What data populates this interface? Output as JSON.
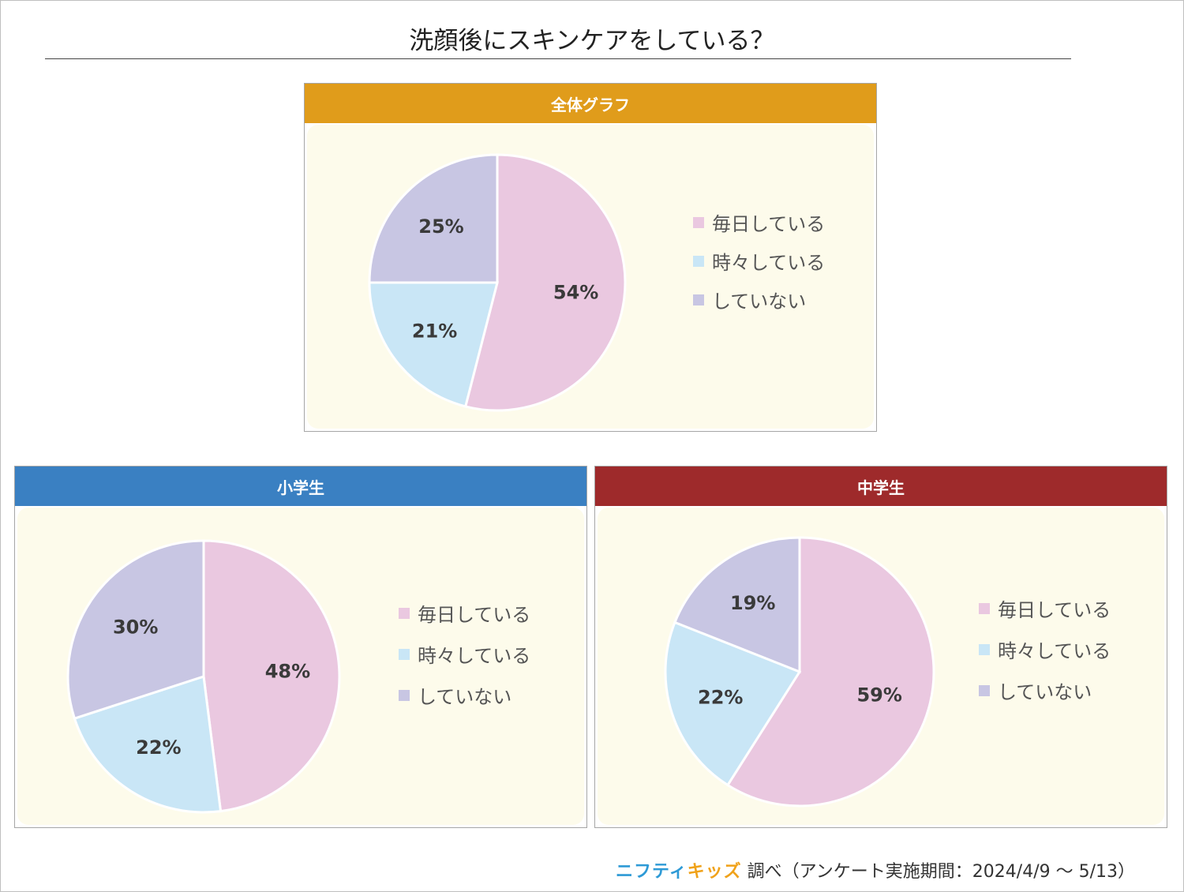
{
  "title": "洗顔後にスキンケアをしている？",
  "colors": {
    "daily": "#eac8e0",
    "sometimes": "#c9e6f6",
    "never": "#c8c6e3",
    "header_overall": "#e09c1b",
    "header_elementary": "#3a80c2",
    "header_junior": "#9e2a2b"
  },
  "footer": {
    "brand_part1": "ニフティ",
    "brand_part2": "キッズ",
    "text": "調べ（アンケート実施期間：2024/4/9 ～ 5/13）"
  },
  "chart_data": [
    {
      "type": "pie",
      "title": "全体グラフ",
      "categories": [
        "毎日している",
        "時々している",
        "していない"
      ],
      "values": [
        54,
        21,
        25
      ],
      "labels": [
        "54%",
        "21%",
        "25%"
      ],
      "legend": "right"
    },
    {
      "type": "pie",
      "title": "小学生",
      "categories": [
        "毎日している",
        "時々している",
        "していない"
      ],
      "values": [
        48,
        22,
        30
      ],
      "labels": [
        "48%",
        "22%",
        "30%"
      ],
      "legend": "right"
    },
    {
      "type": "pie",
      "title": "中学生",
      "categories": [
        "毎日している",
        "時々している",
        "していない"
      ],
      "values": [
        59,
        22,
        19
      ],
      "labels": [
        "59%",
        "22%",
        "19%"
      ],
      "legend": "right"
    }
  ]
}
